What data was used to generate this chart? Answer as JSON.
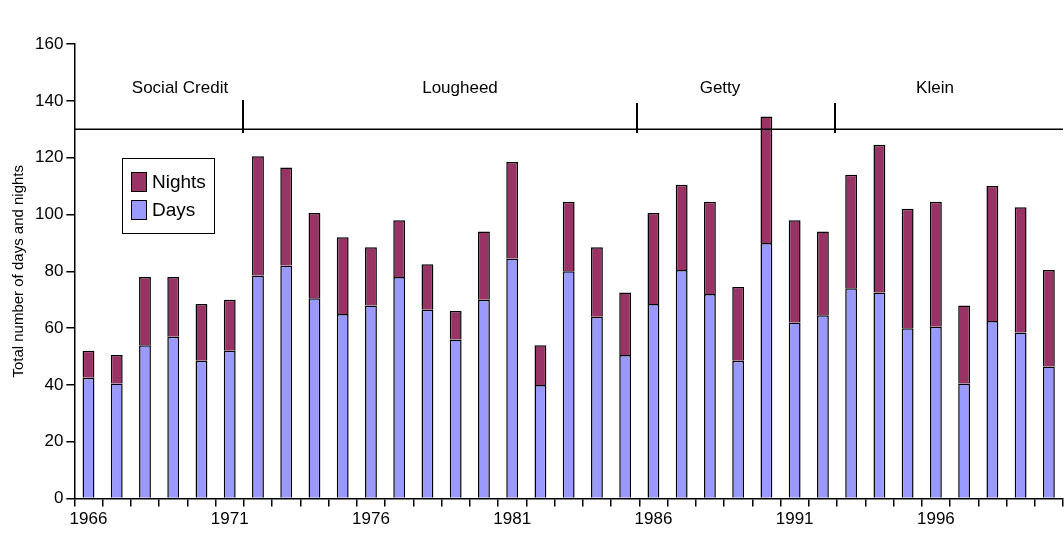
{
  "chart_data": {
    "type": "bar",
    "stacked": true,
    "ylabel": "Total number of days and nights",
    "categories": [
      "1966",
      null,
      null,
      null,
      null,
      "1971",
      null,
      null,
      null,
      null,
      "1976",
      null,
      null,
      null,
      null,
      "1981",
      null,
      null,
      null,
      null,
      "1986",
      null,
      null,
      null,
      null,
      "1991",
      null,
      null,
      null,
      null,
      "1996",
      null,
      null,
      null,
      null
    ],
    "series": [
      {
        "name": "Days",
        "color": "#9999ff",
        "values": [
          42.5,
          40.5,
          54,
          57,
          48.5,
          52,
          78.5,
          82,
          70.5,
          65,
          68,
          78,
          66.5,
          56,
          70,
          84.5,
          40,
          80,
          64,
          50.5,
          68.5,
          80.5,
          72,
          48.5,
          90,
          62,
          64.5,
          74,
          72.5,
          60,
          60.5,
          40.5,
          62.5,
          58.5,
          46.5
        ]
      },
      {
        "name": "Nights",
        "color": "#993366",
        "values": [
          9.5,
          10,
          24,
          21,
          20,
          18,
          42,
          34.5,
          30,
          27,
          20.5,
          20,
          16,
          10,
          24,
          34,
          14,
          24.5,
          24.5,
          22,
          32,
          30,
          32.5,
          26,
          44.5,
          36,
          29.5,
          40,
          52,
          42,
          44,
          27.5,
          47.5,
          44,
          34
        ]
      }
    ],
    "ylim": [
      0,
      160
    ],
    "yticks": [
      0,
      20,
      40,
      60,
      80,
      100,
      120,
      140,
      160
    ],
    "grid": false,
    "legend": "top left",
    "ref_lines": [
      {
        "axis": "y",
        "value": 130
      }
    ],
    "annotations": [
      "Social Credit",
      "Lougheed",
      "Getty",
      "Klein"
    ]
  }
}
